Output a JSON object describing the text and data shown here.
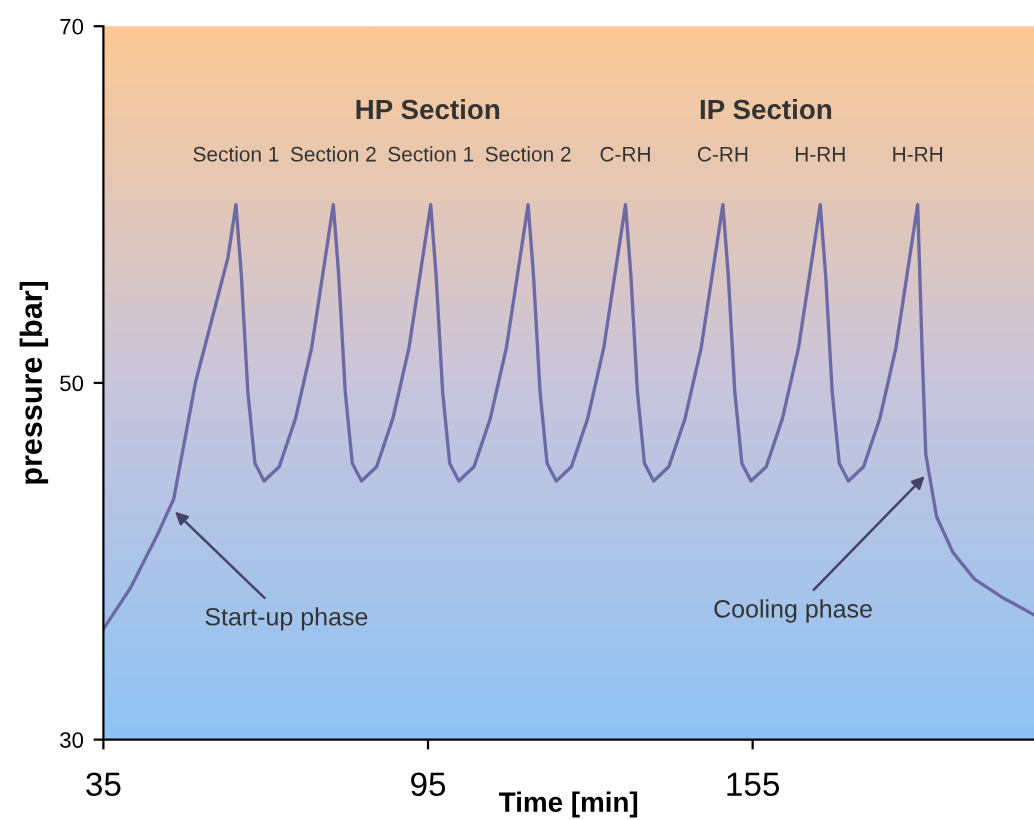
{
  "chart_data": {
    "type": "line",
    "xlabel": "Time [min]",
    "ylabel": "pressure [bar]",
    "xlim": [
      35,
      207
    ],
    "xticks": [
      35,
      95,
      155
    ],
    "ylim": [
      30,
      70
    ],
    "yticks": [
      30,
      50,
      70
    ],
    "grid": false,
    "legend": false,
    "marker": "none",
    "line_style": "solid",
    "series": [
      {
        "color": "#6b6aa6",
        "x": [
          35,
          40,
          45,
          48,
          52,
          55,
          58,
          59.5,
          60.5,
          61.7,
          63,
          64.7,
          67.5,
          70.5,
          73.5,
          76,
          77.5,
          78.5,
          79.7,
          81,
          82.7,
          85.5,
          88.5,
          91.5,
          94,
          95.5,
          96.5,
          97.7,
          99,
          100.7,
          103.5,
          106.5,
          109.5,
          112,
          113.5,
          114.5,
          115.7,
          117,
          118.7,
          121.5,
          124.5,
          127.5,
          130,
          131.5,
          132.5,
          133.7,
          135,
          136.7,
          139.5,
          142.5,
          145.5,
          148,
          149.5,
          150.5,
          151.7,
          153,
          154.7,
          157.5,
          160.5,
          163.5,
          166,
          167.5,
          168.5,
          169.7,
          171,
          172.7,
          175.5,
          178.5,
          181.5,
          184,
          185.5,
          186.3,
          187,
          189,
          192,
          196,
          201,
          207
        ],
        "values": [
          36.2,
          38.5,
          41.5,
          43.5,
          50,
          53.5,
          57,
          60,
          56,
          49.5,
          45.5,
          44.5,
          45.3,
          48,
          52,
          57,
          60,
          56,
          49.5,
          45.5,
          44.5,
          45.3,
          48,
          52,
          57,
          60,
          56,
          49.5,
          45.5,
          44.5,
          45.3,
          48,
          52,
          57,
          60,
          56,
          49.5,
          45.5,
          44.5,
          45.3,
          48,
          52,
          57,
          60,
          56,
          49.5,
          45.5,
          44.5,
          45.3,
          48,
          52,
          57,
          60,
          56,
          49.5,
          45.5,
          44.5,
          45.3,
          48,
          52,
          57,
          60,
          56,
          49.5,
          45.5,
          44.5,
          45.3,
          48,
          52,
          57,
          60,
          52,
          46,
          42.5,
          40.5,
          39,
          38,
          37
        ]
      }
    ],
    "annotations": [
      "HP Section",
      "IP Section",
      {
        "text": "Section 1",
        "x": 59.5,
        "y": 60
      },
      {
        "text": "Section 2",
        "x": 77.5,
        "y": 60
      },
      {
        "text": "Section 1",
        "x": 95.5,
        "y": 60
      },
      {
        "text": "Section 2",
        "x": 113.5,
        "y": 60
      },
      {
        "text": "C-RH",
        "x": 131.5,
        "y": 60
      },
      {
        "text": "C-RH",
        "x": 149.5,
        "y": 60
      },
      {
        "text": "H-RH",
        "x": 167.5,
        "y": 60
      },
      {
        "text": "H-RH",
        "x": 185.5,
        "y": 60
      },
      {
        "text": "Start-up phase",
        "x": 47.5,
        "y": 43
      },
      {
        "text": "Cooling phase",
        "x": 187.5,
        "y": 45
      }
    ]
  }
}
